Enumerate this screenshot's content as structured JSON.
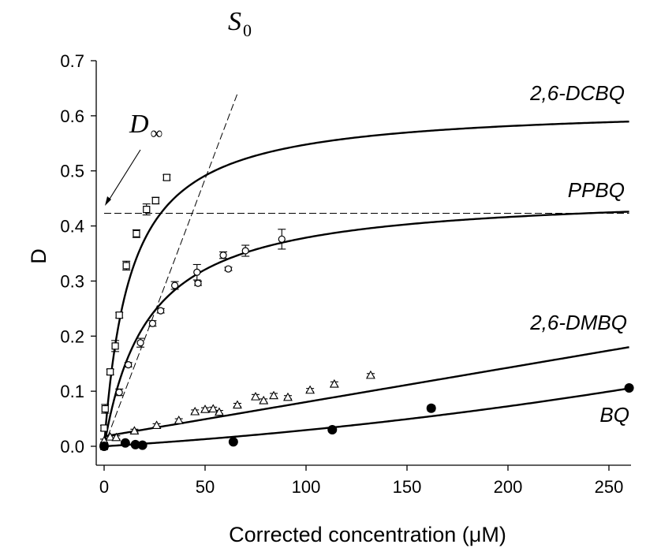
{
  "chart_data": {
    "type": "scatter",
    "title": "",
    "xlabel": "Corrected concentration (μM)",
    "ylabel": "D",
    "xlim": [
      -5,
      260
    ],
    "ylim": [
      -0.02,
      0.7
    ],
    "xticks": [
      "0",
      "50",
      "100",
      "150",
      "200",
      "250"
    ],
    "yticks": [
      "0.0",
      "0.1",
      "0.2",
      "0.3",
      "0.4",
      "0.5",
      "0.6",
      "0.7"
    ],
    "grid": false,
    "legend": "none",
    "series": [
      {
        "name": "2,6-DCBQ",
        "marker": "open-square",
        "points": [
          [
            0,
            0.033,
            0.005
          ],
          [
            0.5,
            0.068,
            0.008
          ],
          [
            3,
            0.135,
            0.005
          ],
          [
            5.5,
            0.182,
            0.01
          ],
          [
            7.5,
            0.238,
            0.005
          ],
          [
            11,
            0.328,
            0.008
          ],
          [
            16,
            0.386,
            0.007
          ],
          [
            21,
            0.43,
            0.01
          ],
          [
            25.5,
            0.446,
            0.006
          ],
          [
            31,
            0.488,
            0.005
          ]
        ],
        "fit": {
          "model": "hyperbolic",
          "dmax": 0.619,
          "k": 13
        }
      },
      {
        "name": "PPBQ",
        "marker": "open-circle",
        "points": [
          [
            0,
            0.0,
            0.006
          ],
          [
            7.5,
            0.098,
            0.006
          ],
          [
            12,
            0.148,
            0.004
          ],
          [
            18,
            0.188,
            0.008
          ],
          [
            24,
            0.223,
            0.005
          ],
          [
            28,
            0.246,
            0.004
          ],
          [
            35,
            0.292,
            0.007
          ],
          [
            46,
            0.316,
            0.014
          ],
          [
            46.5,
            0.296,
            0.004
          ],
          [
            59,
            0.347,
            0.006
          ],
          [
            61.5,
            0.322,
            0.003
          ],
          [
            70,
            0.355,
            0.01
          ],
          [
            88,
            0.376,
            0.018
          ]
        ],
        "fit": {
          "model": "hyperbolic",
          "dmax": 0.462,
          "k": 22
        }
      },
      {
        "name": "2,6-DMBQ",
        "marker": "open-triangle",
        "points": [
          [
            0,
            0.01,
            0.003
          ],
          [
            3,
            0.017,
            0.003
          ],
          [
            6,
            0.016,
            0.003
          ],
          [
            15,
            0.028,
            0.003
          ],
          [
            26,
            0.038,
            0.003
          ],
          [
            37,
            0.047,
            0.003
          ],
          [
            45,
            0.063,
            0.003
          ],
          [
            50,
            0.067,
            0.003
          ],
          [
            54,
            0.068,
            0.003
          ],
          [
            57,
            0.062,
            0.003
          ],
          [
            66,
            0.075,
            0.003
          ],
          [
            75,
            0.09,
            0.004
          ],
          [
            79,
            0.083,
            0.003
          ],
          [
            84,
            0.092,
            0.004
          ],
          [
            91,
            0.089,
            0.003
          ],
          [
            102,
            0.102,
            0.003
          ],
          [
            114,
            0.113,
            0.004
          ],
          [
            132,
            0.129,
            0.003
          ]
        ],
        "fit": {
          "model": "linear",
          "intercept": 0.018,
          "slope": 0.000623
        }
      },
      {
        "name": "BQ",
        "marker": "filled-circle",
        "points": [
          [
            0,
            0.0,
            0.002
          ],
          [
            10.5,
            0.006,
            0.002
          ],
          [
            15.5,
            0.003,
            0.002
          ],
          [
            19,
            0.002,
            0.002
          ],
          [
            64,
            0.008,
            0.004
          ],
          [
            113,
            0.03,
            0.004
          ],
          [
            162,
            0.069,
            0.005
          ],
          [
            260,
            0.106,
            0.003
          ]
        ],
        "fit": {
          "model": "quadratic",
          "a": 6.9e-07,
          "b": 0.000225,
          "c": 0.0
        }
      }
    ],
    "annotations": {
      "d_infinity": {
        "label": "D",
        "subscript": "∞",
        "value": 0.423
      },
      "s0": {
        "label": "S",
        "subscript": "0",
        "slope_per_uM": 0.0097
      }
    },
    "colors": {
      "ink": "#000000",
      "background": "#ffffff"
    }
  }
}
